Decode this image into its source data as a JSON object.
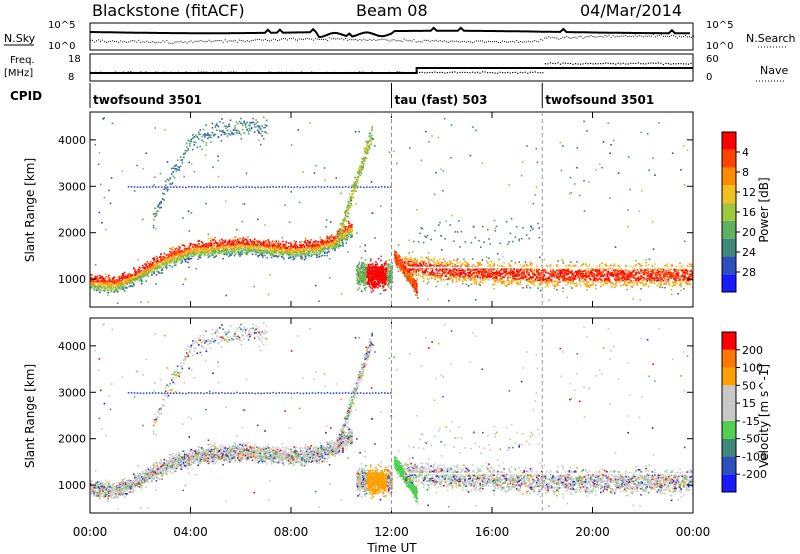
{
  "header": {
    "station_title": "Blackstone (fitACF)",
    "beam": "Beam 08",
    "date": "04/Mar/2014"
  },
  "strips": {
    "nsky_label": "N.Sky",
    "nsearch_label": "N.Search",
    "noise_ticks": [
      "10^5",
      "10^0"
    ],
    "freq_label": "Freq.",
    "freq_unit": "[MHz]",
    "freq_ticks": [
      "18",
      "8"
    ],
    "nave_label": "Nave",
    "nave_ticks": [
      "60",
      "0"
    ],
    "cpid_label": "CPID",
    "cpid_segments": [
      {
        "name": "twofsound 3501",
        "start_hour": 0,
        "end_hour": 12
      },
      {
        "name": "tau (fast) 503",
        "start_hour": 12,
        "end_hour": 18
      },
      {
        "name": "twofsound 3501",
        "start_hour": 18,
        "end_hour": 24
      }
    ]
  },
  "chart_data": [
    {
      "type": "heatmap",
      "panel": "power",
      "ylabel": "Slant Range [km]",
      "xlabel": "Time UT",
      "xlim": [
        0,
        24
      ],
      "ylim": [
        400,
        4600
      ],
      "y_ticks": [
        1000,
        2000,
        3000,
        4000
      ],
      "x_ticks": [
        "00:00",
        "04:00",
        "08:00",
        "12:00",
        "16:00",
        "20:00",
        "00:00"
      ],
      "colorbar": {
        "label": "Power [dB]",
        "ticks": [
          "4",
          "8",
          "12",
          "16",
          "20",
          "24",
          "28"
        ],
        "colors": [
          "#1a1aff",
          "#2f4fbf",
          "#3f8a7a",
          "#5fb05f",
          "#9fc83f",
          "#f0c020",
          "#ff8a00",
          "#ff4400",
          "#ff0000"
        ]
      },
      "main_band": [
        [
          0,
          1050
        ],
        [
          1,
          1000
        ],
        [
          2,
          1250
        ],
        [
          3,
          1550
        ],
        [
          4,
          1750
        ],
        [
          5,
          1800
        ],
        [
          6,
          1850
        ],
        [
          7,
          1800
        ],
        [
          8,
          1750
        ],
        [
          9,
          1800
        ],
        [
          9.8,
          1950
        ],
        [
          10.3,
          2200
        ]
      ],
      "upper_band": [
        [
          2.5,
          2300
        ],
        [
          3,
          3000
        ],
        [
          3.5,
          3500
        ],
        [
          4,
          4000
        ],
        [
          5,
          4200
        ],
        [
          6,
          4300
        ]
      ],
      "late_band": [
        [
          12.5,
          1300
        ],
        [
          14,
          1200
        ],
        [
          16,
          1150
        ],
        [
          18,
          1100
        ],
        [
          20,
          1100
        ],
        [
          22,
          1100
        ],
        [
          24,
          1100
        ]
      ]
    },
    {
      "type": "heatmap",
      "panel": "velocity",
      "ylabel": "Slant Range [km]",
      "xlabel": "Time UT",
      "xlim": [
        0,
        24
      ],
      "ylim": [
        400,
        4600
      ],
      "y_ticks": [
        1000,
        2000,
        3000,
        4000
      ],
      "x_ticks": [
        "00:00",
        "04:00",
        "08:00",
        "12:00",
        "16:00",
        "20:00",
        "00:00"
      ],
      "colorbar": {
        "label": "Velocity [m s^-1]",
        "ticks": [
          "200",
          "100",
          "50",
          "15",
          "-15",
          "-50",
          "-100",
          "-200"
        ],
        "colors": [
          "#1a1aff",
          "#2f4fbf",
          "#3f8a7a",
          "#4fd04f",
          "#c8c8c8",
          "#c8c8c8",
          "#ff9f00",
          "#ff7700",
          "#ff0000"
        ]
      }
    }
  ],
  "axis": {
    "xlabel": "Time UT"
  }
}
